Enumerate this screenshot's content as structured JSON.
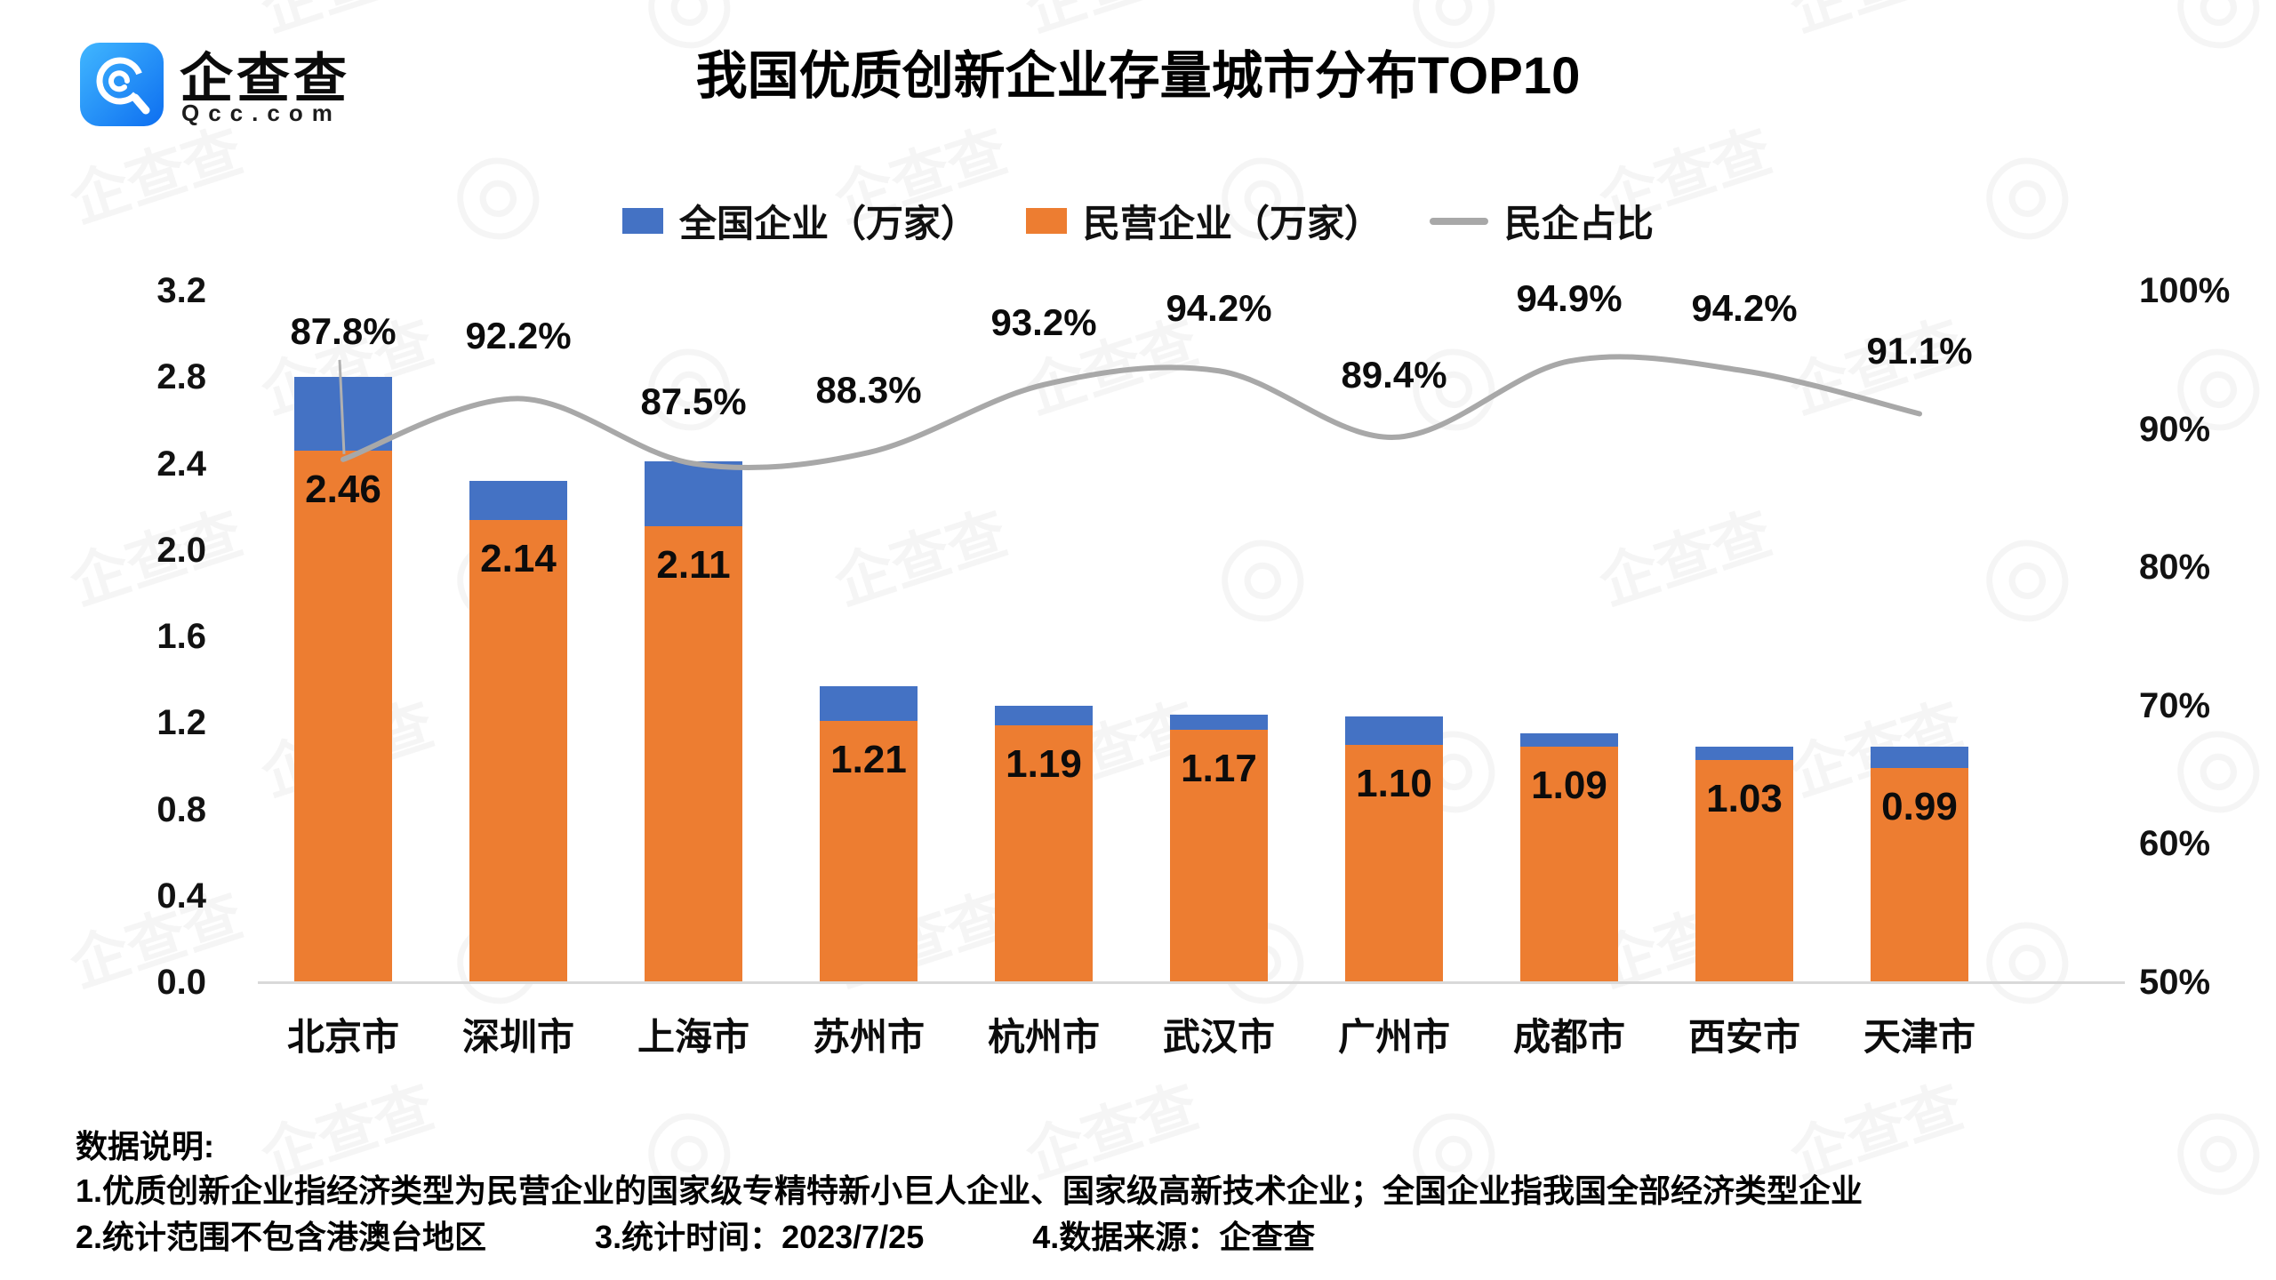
{
  "branding": {
    "logo_text": "企查查",
    "logo_sub": "Qcc.com",
    "watermark_text": "企查查"
  },
  "title": "我国优质创新企业存量城市分布TOP10",
  "legend": [
    {
      "label": "全国企业（万家）",
      "color": "#4472C4",
      "kind": "swatch"
    },
    {
      "label": "民营企业（万家）",
      "color": "#ED7D31",
      "kind": "swatch"
    },
    {
      "label": "民企占比",
      "color": "#A8A8A8",
      "kind": "line"
    }
  ],
  "chart_data": {
    "type": "bar",
    "subtype": "overlapped bars + smooth percentage line (dual axis)",
    "title": "我国优质创新企业存量城市分布TOP10",
    "categories": [
      "北京市",
      "深圳市",
      "上海市",
      "苏州市",
      "杭州市",
      "武汉市",
      "广州市",
      "成都市",
      "西安市",
      "天津市"
    ],
    "series": [
      {
        "name": "全国企业（万家）",
        "chart": "bar",
        "color": "#4472C4",
        "values": [
          2.8,
          2.32,
          2.41,
          1.37,
          1.28,
          1.24,
          1.23,
          1.15,
          1.09,
          1.09
        ],
        "note": "no data labels shown; heights estimated from bars (民营值÷民企占比)"
      },
      {
        "name": "民营企业（万家）",
        "chart": "bar",
        "color": "#ED7D31",
        "values": [
          2.46,
          2.14,
          2.11,
          1.21,
          1.19,
          1.17,
          1.1,
          1.09,
          1.03,
          0.99
        ],
        "labels": [
          "2.46",
          "2.14",
          "2.11",
          "1.21",
          "1.19",
          "1.17",
          "1.10",
          "1.09",
          "1.03",
          "0.99"
        ]
      },
      {
        "name": "民企占比",
        "chart": "line-smooth",
        "color": "#A8A8A8",
        "values": [
          87.8,
          92.2,
          87.5,
          88.3,
          93.2,
          94.2,
          89.4,
          94.9,
          94.2,
          91.1
        ],
        "labels": [
          "87.8%",
          "92.2%",
          "87.5%",
          "88.3%",
          "93.2%",
          "94.2%",
          "89.4%",
          "94.9%",
          "94.2%",
          "91.1%"
        ]
      }
    ],
    "left_axis": {
      "min": 0,
      "max": 3.2,
      "ticks": [
        "3.2",
        "2.8",
        "2.4",
        "2.0",
        "1.6",
        "1.2",
        "0.8",
        "0.4",
        "0.0"
      ]
    },
    "right_axis": {
      "min": 50,
      "max": 100,
      "ticks": [
        "100%",
        "90%",
        "80%",
        "70%",
        "60%",
        "50%"
      ]
    },
    "grid": "off",
    "legend_position": "top"
  },
  "footer": {
    "heading": "数据说明:",
    "note1": "1.优质创新企业指经济类型为民营企业的国家级专精特新小巨人企业、国家级高新技术企业；全国企业指我国全部经济类型企业",
    "note2_parts": [
      "2.统计范围不包含港澳台地区",
      "3.统计时间：2023/7/25",
      "4.数据来源：企查查"
    ]
  }
}
